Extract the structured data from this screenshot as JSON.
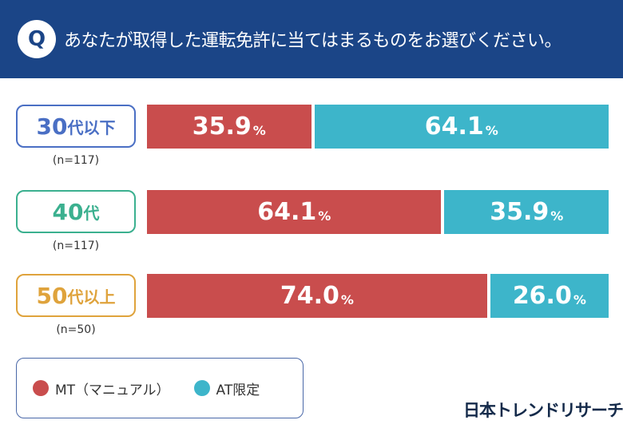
{
  "header": {
    "q": "Q",
    "title": "あなたが取得した運転免許に当てはまるものをお選びください。"
  },
  "chart_data": {
    "type": "bar",
    "stacked": true,
    "orientation": "horizontal",
    "title": "あなたが取得した運転免許に当てはまるものをお選びください。",
    "categories": [
      "30代以下",
      "40代",
      "50代以上"
    ],
    "sample_sizes": [
      "(n=117)",
      "(n=117)",
      "(n=50)"
    ],
    "series": [
      {
        "name": "MT（マニュアル）",
        "color": "#c94d4d",
        "values": [
          35.9,
          64.1,
          74.0
        ]
      },
      {
        "name": "AT限定",
        "color": "#3db5ca",
        "values": [
          64.1,
          35.9,
          26.0
        ]
      }
    ],
    "unit": "%",
    "xlim": [
      0,
      100
    ],
    "legend": "bottom-left"
  },
  "rows": [
    {
      "num": "30",
      "suffix": "代以下",
      "color": "#4a6fc4"
    },
    {
      "num": "40",
      "suffix": "代",
      "color": "#3bb08f"
    },
    {
      "num": "50",
      "suffix": "代以上",
      "color": "#dfa33c"
    }
  ],
  "footer": {
    "logo": "日本トレンドリサーチ"
  }
}
